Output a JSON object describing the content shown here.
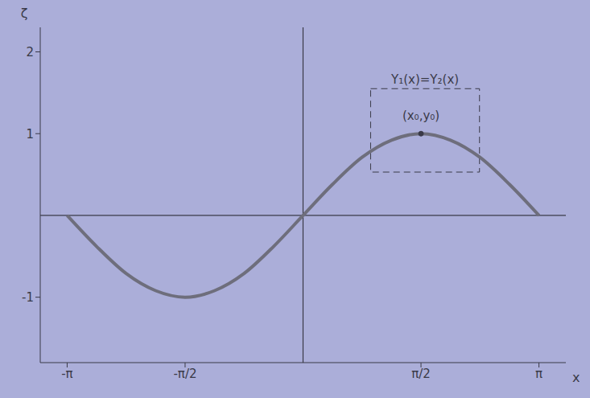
{
  "chart_data": {
    "type": "line",
    "x_label": "x",
    "y_label": "ζ",
    "x": [
      -3.1416,
      -2.7489,
      -2.3562,
      -1.9635,
      -1.5708,
      -1.1781,
      -0.7854,
      -0.3927,
      0,
      0.3927,
      0.7854,
      1.1781,
      1.5708,
      1.9635,
      2.3562,
      2.7489,
      3.1416
    ],
    "values": [
      0,
      -0.38,
      -0.71,
      -0.92,
      -1,
      -0.92,
      -0.71,
      -0.38,
      0,
      0.38,
      0.71,
      0.92,
      1,
      0.92,
      0.71,
      0.38,
      0
    ],
    "color": "#6e6e7c",
    "xlim": [
      -3.5,
      3.5
    ],
    "ylim": [
      -1.8,
      2.3
    ],
    "xticks": [
      {
        "value": -3.1416,
        "label": "-π"
      },
      {
        "value": -1.5708,
        "label": "-π/2"
      },
      {
        "value": 1.5708,
        "label": "π/2"
      },
      {
        "value": 3.1416,
        "label": "π"
      }
    ],
    "yticks": [
      -1,
      1,
      2
    ],
    "grid": false,
    "highlight": {
      "label": "Y₁(x)=Y₂(x)",
      "x": [
        0.9,
        2.35
      ],
      "y": [
        0.53,
        1.55
      ],
      "point": {
        "x": 1.5708,
        "y": 1,
        "label": "(x₀,y₀)"
      }
    }
  }
}
